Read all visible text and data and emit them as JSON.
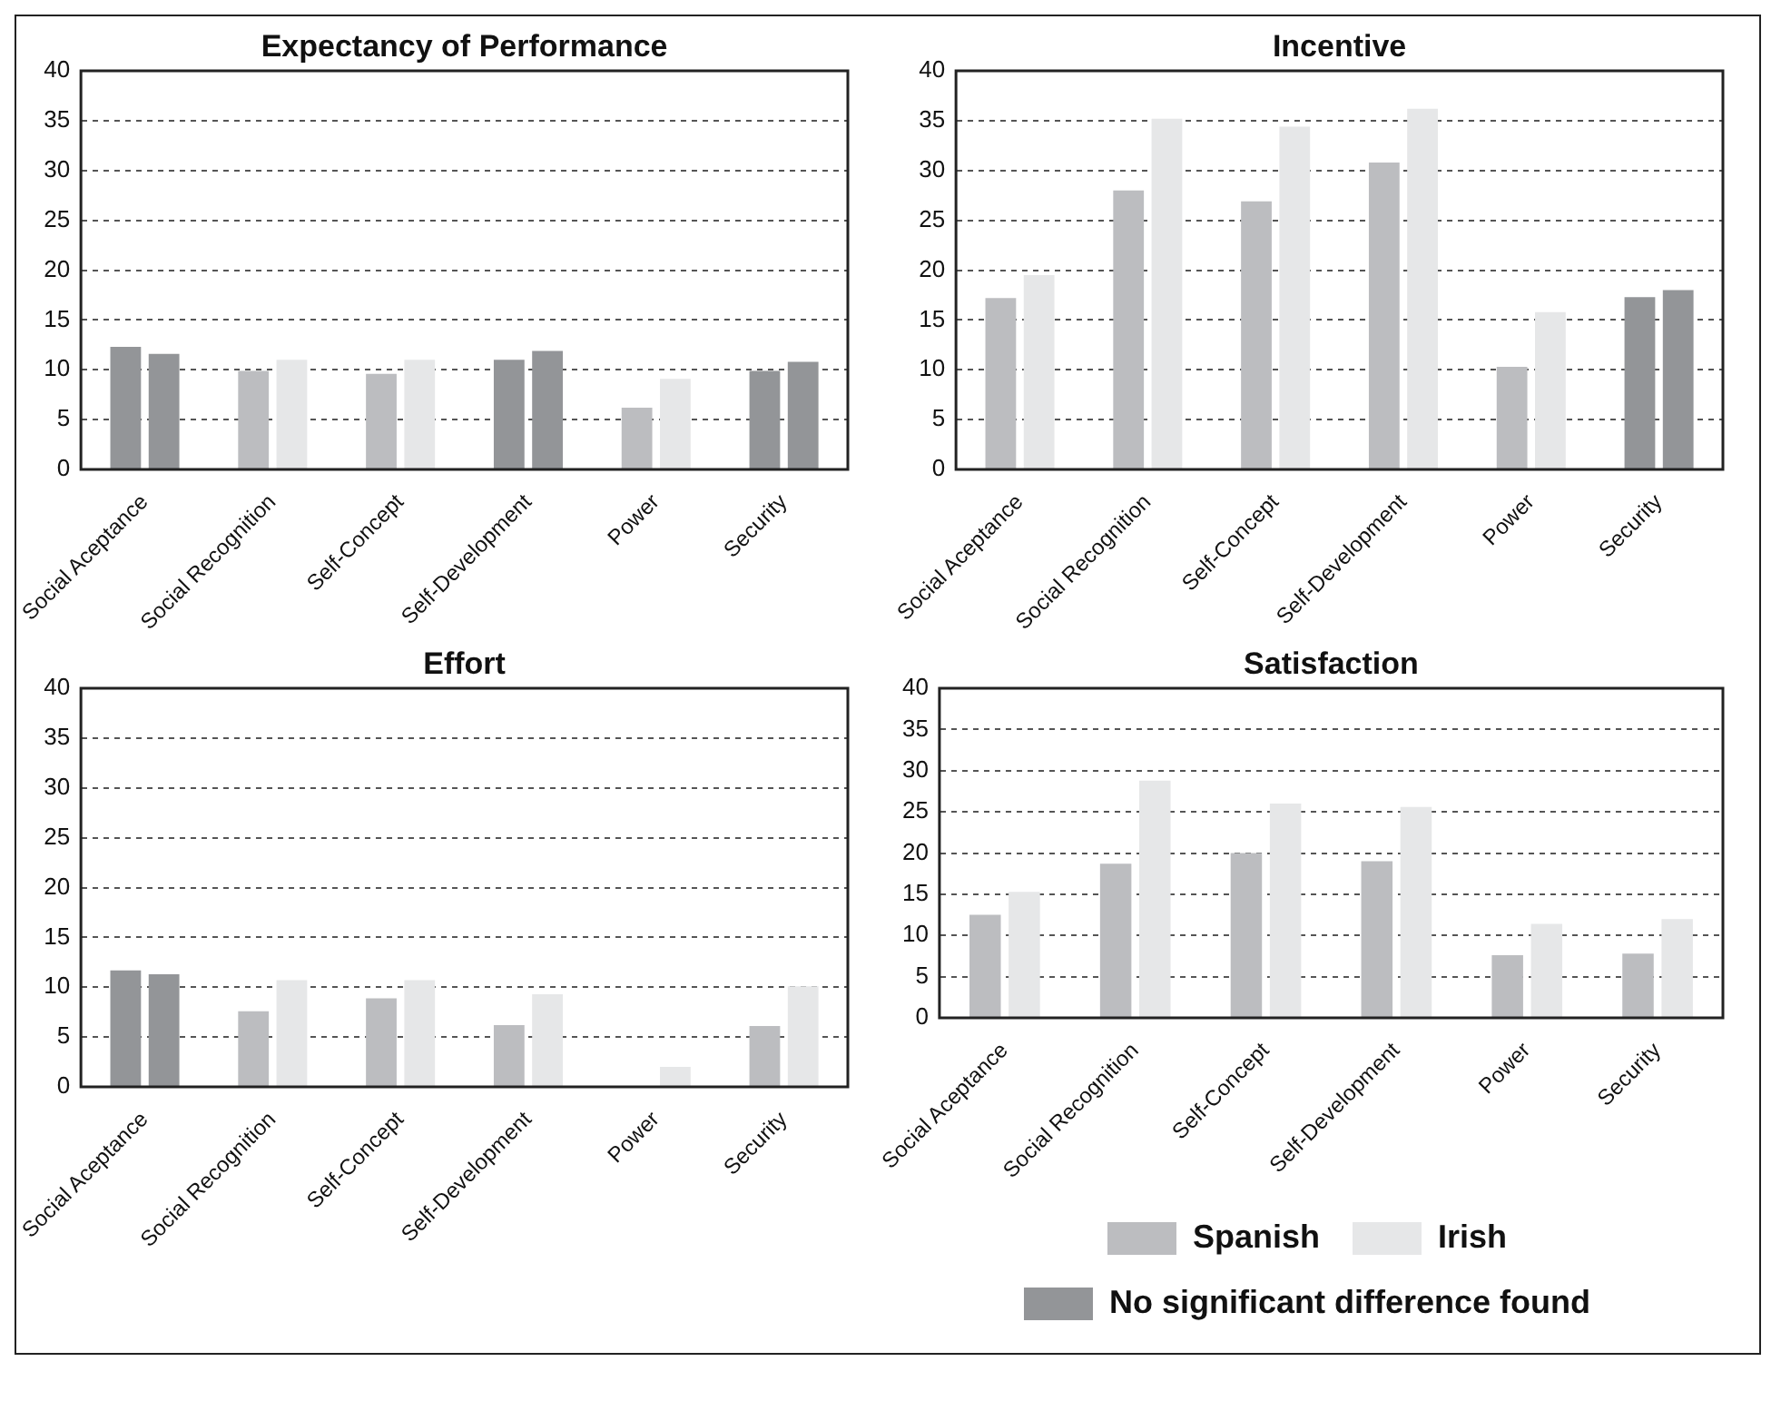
{
  "chart_data": [
    {
      "type": "bar",
      "title": "Expectancy of Performance",
      "categories": [
        "Social Aceptance",
        "Social Recognition",
        "Self-Concept",
        "Self-Development",
        "Power",
        "Security"
      ],
      "series": [
        {
          "colors": [
            "#939598",
            "#bcbdc0",
            "#bcbdc0",
            "#939598",
            "#bcbdc0",
            "#939598"
          ],
          "values": [
            12.3,
            9.9,
            9.6,
            11.0,
            6.2,
            9.9
          ]
        },
        {
          "colors": [
            "#939598",
            "#e6e7e8",
            "#e6e7e8",
            "#939598",
            "#e6e7e8",
            "#939598"
          ],
          "values": [
            11.6,
            11.0,
            11.0,
            11.9,
            9.1,
            10.8
          ]
        }
      ],
      "ylim": [
        0,
        40
      ],
      "yticks": [
        0,
        5,
        10,
        15,
        20,
        25,
        30,
        35,
        40
      ],
      "grid": "y"
    },
    {
      "type": "bar",
      "title": "Incentive",
      "categories": [
        "Social Aceptance",
        "Social Recognition",
        "Self-Concept",
        "Self-Development",
        "Power",
        "Security"
      ],
      "series": [
        {
          "colors": [
            "#bcbdc0",
            "#bcbdc0",
            "#bcbdc0",
            "#bcbdc0",
            "#bcbdc0",
            "#939598"
          ],
          "values": [
            17.2,
            28.0,
            26.9,
            30.8,
            10.3,
            17.3
          ]
        },
        {
          "colors": [
            "#e6e7e8",
            "#e6e7e8",
            "#e6e7e8",
            "#e6e7e8",
            "#e6e7e8",
            "#939598"
          ],
          "values": [
            19.5,
            35.2,
            34.4,
            36.2,
            15.8,
            18.0
          ]
        }
      ],
      "ylim": [
        0,
        40
      ],
      "yticks": [
        0,
        5,
        10,
        15,
        20,
        25,
        30,
        35,
        40
      ],
      "grid": "y"
    },
    {
      "type": "bar",
      "title": "Effort",
      "categories": [
        "Social Aceptance",
        "Social Recognition",
        "Self-Concept",
        "Self-Development",
        "Power",
        "Security"
      ],
      "series": [
        {
          "colors": [
            "#939598",
            "#bcbdc0",
            "#bcbdc0",
            "#bcbdc0",
            "#bcbdc0",
            "#bcbdc0"
          ],
          "values": [
            11.7,
            7.6,
            8.9,
            6.2,
            0,
            6.1
          ]
        },
        {
          "colors": [
            "#939598",
            "#e6e7e8",
            "#e6e7e8",
            "#e6e7e8",
            "#e6e7e8",
            "#e6e7e8"
          ],
          "values": [
            11.3,
            10.7,
            10.7,
            9.3,
            2.0,
            10.1
          ]
        }
      ],
      "ylim": [
        0,
        40
      ],
      "yticks": [
        0,
        5,
        10,
        15,
        20,
        25,
        30,
        35,
        40
      ],
      "grid": "y"
    },
    {
      "type": "bar",
      "title": "Satisfaction",
      "categories": [
        "Social Aceptance",
        "Social Recognition",
        "Self-Concept",
        "Self-Development",
        "Power",
        "Security"
      ],
      "series": [
        {
          "name": "Spanish",
          "color": "#bcbdc0",
          "values": [
            12.5,
            18.7,
            20.0,
            19.0,
            7.6,
            7.8
          ]
        },
        {
          "name": "Irish",
          "color": "#e6e7e8",
          "values": [
            15.3,
            28.8,
            26.0,
            25.6,
            11.4,
            12.0
          ]
        },
        {
          "name": "No significant difference found",
          "color": "#939598",
          "values": [
            null,
            null,
            null,
            null,
            null,
            null
          ]
        }
      ],
      "ylim": [
        0,
        40
      ],
      "yticks": [
        0,
        5,
        10,
        15,
        20,
        25,
        30,
        35,
        40
      ],
      "grid": "y",
      "legend": "bottom"
    }
  ]
}
